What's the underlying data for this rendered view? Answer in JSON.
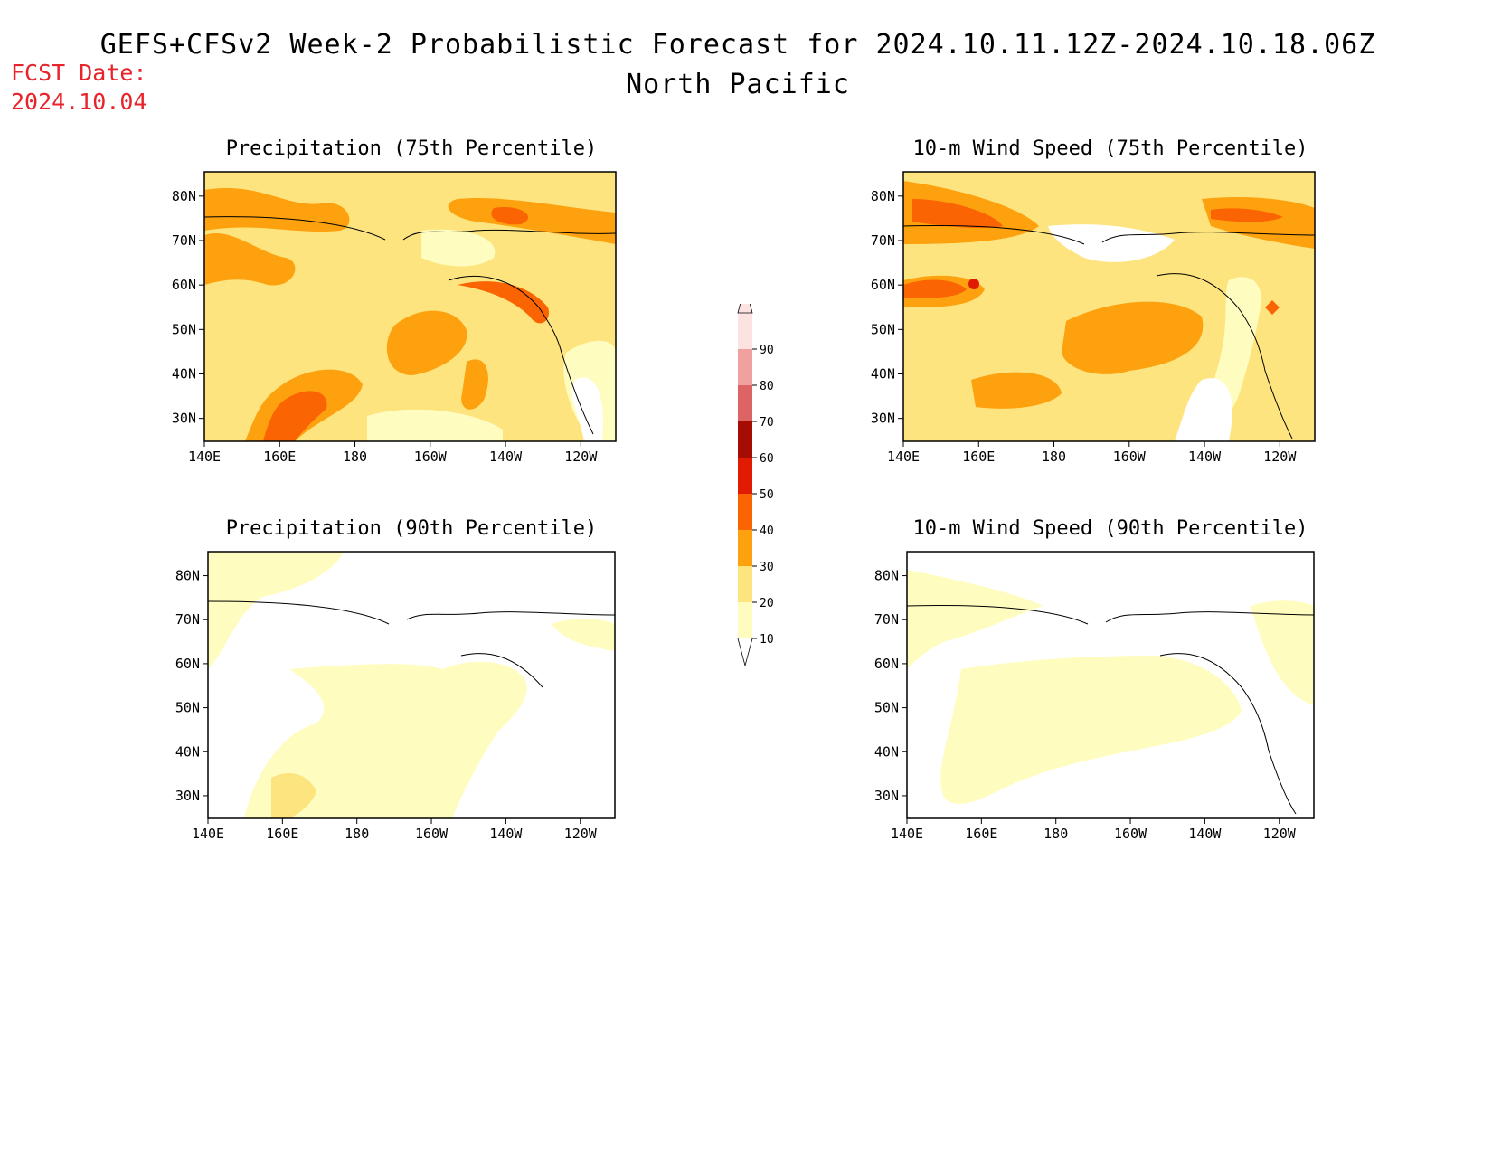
{
  "header": {
    "title": "GEFS+CFSv2 Week-2 Probabilistic Forecast for 2024.10.11.12Z-2024.10.18.06Z",
    "region": "North Pacific",
    "fcst_label": "FCST Date:",
    "fcst_date": "2024.10.04"
  },
  "colors": {
    "accent_red": "#e8232a",
    "scale": [
      "#fffcc0",
      "#fde47f",
      "#fda10e",
      "#fb6402",
      "#e11a02",
      "#a50d02",
      "#dc6464",
      "#f1a0a0",
      "#fde2e2"
    ]
  },
  "colorbar": {
    "ticks": [
      "10",
      "20",
      "30",
      "40",
      "50",
      "60",
      "70",
      "80",
      "90"
    ]
  },
  "panels": [
    {
      "title": "Precipitation (75th Percentile)",
      "variable": "precipitation",
      "percentile": 75
    },
    {
      "title": "10-m Wind Speed (75th Percentile)",
      "variable": "wind-speed",
      "percentile": 75
    },
    {
      "title": "Precipitation (90th Percentile)",
      "variable": "precipitation",
      "percentile": 90
    },
    {
      "title": "10-m Wind Speed (90th Percentile)",
      "variable": "wind-speed",
      "percentile": 90
    }
  ],
  "axes": {
    "lon_labels": [
      "140E",
      "160E",
      "180",
      "160W",
      "140W",
      "120W"
    ],
    "lat_labels": [
      "80N",
      "70N",
      "60N",
      "50N",
      "40N",
      "30N"
    ]
  }
}
